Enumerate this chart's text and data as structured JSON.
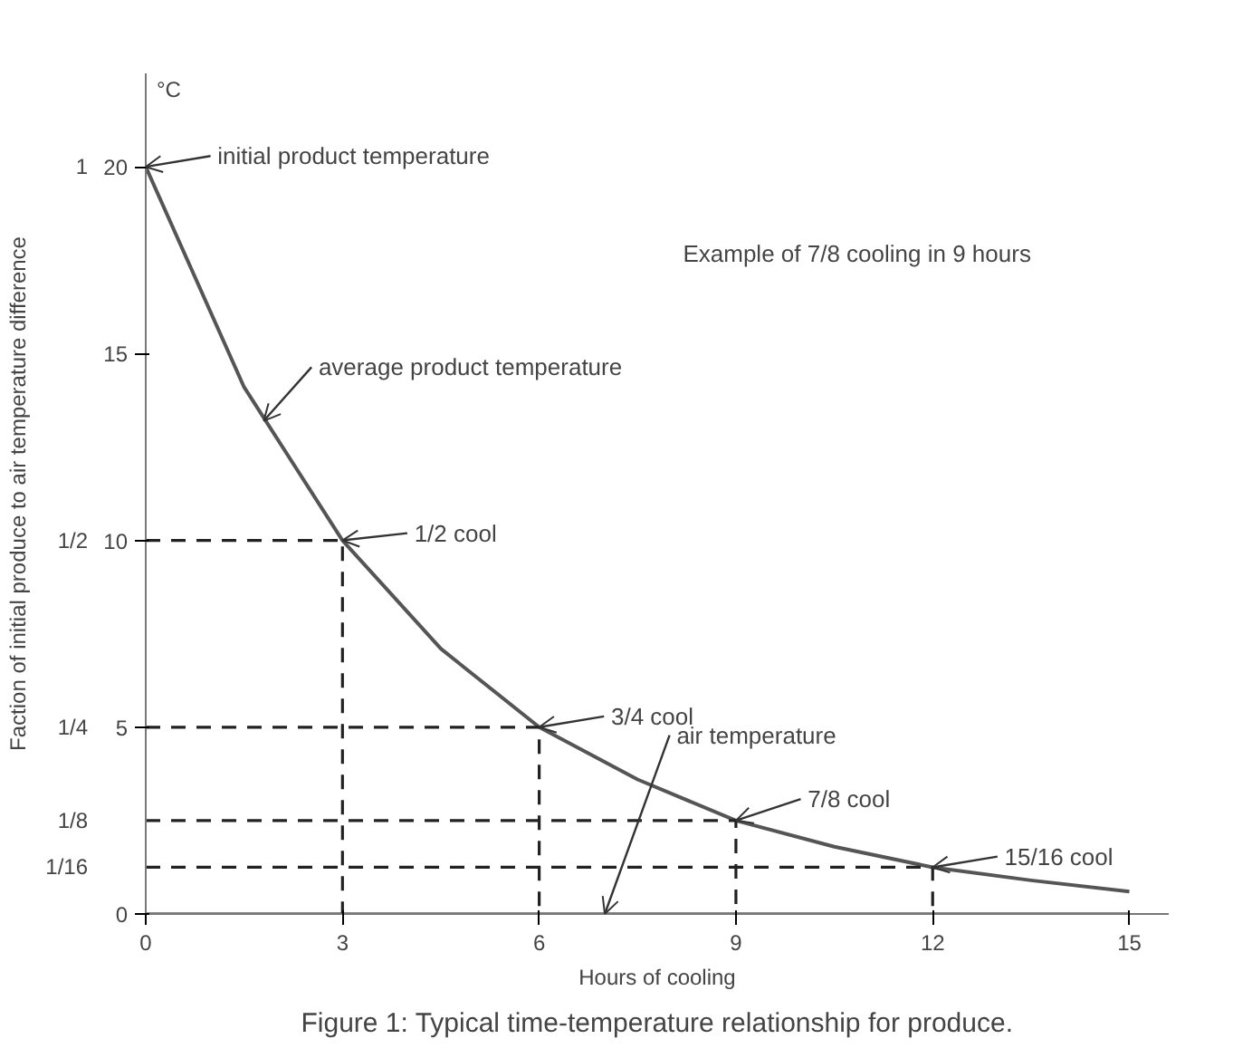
{
  "chart_data": {
    "type": "line",
    "title": "Figure 1: Typical time-temperature relationship for produce.",
    "xlabel": "Hours of cooling",
    "y2label": "Faction of initial produce to air temperature difference",
    "xlim": [
      0,
      15.6
    ],
    "ylim": [
      0,
      22.5
    ],
    "xticks": [
      0,
      3,
      6,
      9,
      12,
      15
    ],
    "yticks": [
      0,
      5,
      10,
      15,
      20
    ],
    "y2lim": [
      0,
      1.125
    ],
    "y2ticks": [
      {
        "value": 0.0625,
        "label": "1/16"
      },
      {
        "value": 0.125,
        "label": "1/8"
      },
      {
        "value": 0.25,
        "label": "1/4"
      },
      {
        "value": 0.5,
        "label": "1/2"
      },
      1
    ],
    "grid": false,
    "series": [
      {
        "x": [
          0,
          1.5,
          3,
          4.5,
          6,
          7.5,
          9,
          10.5,
          12,
          13.5,
          15
        ],
        "values": [
          20,
          14.1,
          10,
          7.1,
          5,
          3.6,
          2.5,
          1.8,
          1.25,
          0.9,
          0.6
        ],
        "color": "#555555",
        "line_style": "solid"
      },
      {
        "x": [
          0,
          15
        ],
        "values": [
          0,
          0
        ],
        "color": "#888888",
        "line_style": "solid"
      },
      {
        "x": [
          0,
          3,
          3
        ],
        "values": [
          10,
          10,
          0
        ],
        "color": "#222222",
        "line_style": "dashed"
      },
      {
        "x": [
          0,
          6,
          6
        ],
        "values": [
          5,
          5,
          0
        ],
        "color": "#222222",
        "line_style": "dashed"
      },
      {
        "x": [
          0,
          9,
          9
        ],
        "values": [
          2.5,
          2.5,
          0
        ],
        "color": "#222222",
        "line_style": "dashed"
      },
      {
        "x": [
          0,
          12,
          12
        ],
        "values": [
          1.25,
          1.25,
          0
        ],
        "color": "#222222",
        "line_style": "dashed"
      }
    ],
    "annotations": [
      "°C",
      "Example of 7/8 cooling in 9 hours",
      {
        "text": "initial product temperature",
        "x": 0,
        "y": 20
      },
      {
        "text": "average product temperature",
        "x": 1.8,
        "y": 13.2
      },
      {
        "text": "1/2 cool",
        "x": 3,
        "y": 10
      },
      {
        "text": "3/4 cool",
        "x": 6,
        "y": 5
      },
      {
        "text": "7/8 cool",
        "x": 9,
        "y": 2.5
      },
      {
        "text": "15/16 cool",
        "x": 12,
        "y": 1.25
      },
      {
        "text": "air temperature",
        "x": 7,
        "y": 0
      }
    ]
  }
}
